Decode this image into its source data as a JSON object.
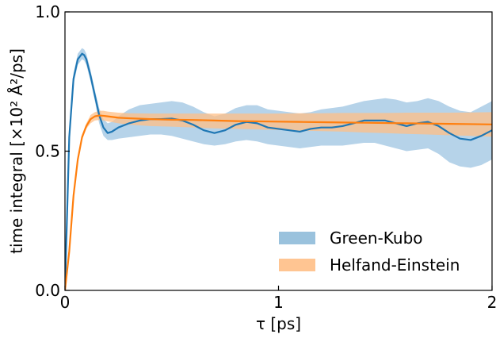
{
  "chart_data": {
    "type": "line",
    "xlabel": "τ [ps]",
    "ylabel": "time integral [×10² Å²/ps]",
    "xlim": [
      0,
      2
    ],
    "ylim": [
      0,
      1
    ],
    "x_ticks": [
      "0",
      "1",
      "2"
    ],
    "y_ticks": [
      "0.0",
      "0.5",
      "1.0"
    ],
    "legend_position": "lower-right",
    "grid": false,
    "series": [
      {
        "name": "Green-Kubo",
        "line_color": "#1f77b4",
        "band_color": "#9ec4e2",
        "x": [
          0.0,
          0.02,
          0.04,
          0.06,
          0.08,
          0.09,
          0.1,
          0.12,
          0.14,
          0.16,
          0.18,
          0.2,
          0.22,
          0.25,
          0.3,
          0.35,
          0.4,
          0.45,
          0.5,
          0.55,
          0.6,
          0.65,
          0.7,
          0.75,
          0.8,
          0.85,
          0.9,
          0.95,
          1.0,
          1.05,
          1.1,
          1.15,
          1.2,
          1.25,
          1.3,
          1.35,
          1.4,
          1.45,
          1.5,
          1.55,
          1.6,
          1.65,
          1.7,
          1.75,
          1.8,
          1.85,
          1.9,
          1.95,
          2.0
        ],
        "y": [
          0.0,
          0.55,
          0.76,
          0.83,
          0.85,
          0.845,
          0.83,
          0.77,
          0.7,
          0.63,
          0.585,
          0.565,
          0.57,
          0.585,
          0.6,
          0.61,
          0.615,
          0.615,
          0.617,
          0.61,
          0.595,
          0.575,
          0.565,
          0.575,
          0.595,
          0.605,
          0.6,
          0.585,
          0.58,
          0.575,
          0.57,
          0.58,
          0.585,
          0.585,
          0.59,
          0.6,
          0.61,
          0.61,
          0.61,
          0.6,
          0.59,
          0.6,
          0.605,
          0.59,
          0.565,
          0.545,
          0.54,
          0.555,
          0.575
        ],
        "lower": [
          0.0,
          0.53,
          0.74,
          0.81,
          0.83,
          0.825,
          0.81,
          0.75,
          0.68,
          0.6,
          0.555,
          0.54,
          0.54,
          0.545,
          0.55,
          0.555,
          0.56,
          0.56,
          0.555,
          0.545,
          0.535,
          0.525,
          0.52,
          0.525,
          0.535,
          0.54,
          0.535,
          0.525,
          0.52,
          0.515,
          0.51,
          0.515,
          0.52,
          0.52,
          0.52,
          0.525,
          0.53,
          0.53,
          0.52,
          0.51,
          0.5,
          0.505,
          0.51,
          0.49,
          0.46,
          0.445,
          0.44,
          0.45,
          0.47
        ],
        "upper": [
          0.0,
          0.57,
          0.78,
          0.85,
          0.87,
          0.865,
          0.85,
          0.79,
          0.72,
          0.655,
          0.615,
          0.6,
          0.605,
          0.625,
          0.65,
          0.665,
          0.67,
          0.675,
          0.68,
          0.675,
          0.66,
          0.64,
          0.625,
          0.635,
          0.655,
          0.665,
          0.665,
          0.65,
          0.645,
          0.64,
          0.635,
          0.64,
          0.65,
          0.655,
          0.66,
          0.67,
          0.68,
          0.685,
          0.69,
          0.685,
          0.675,
          0.68,
          0.69,
          0.68,
          0.66,
          0.645,
          0.64,
          0.66,
          0.68
        ]
      },
      {
        "name": "Helfand-Einstein",
        "line_color": "#ff7f0e",
        "band_color": "#ffbf86",
        "x": [
          0.0,
          0.02,
          0.04,
          0.06,
          0.08,
          0.1,
          0.12,
          0.14,
          0.16,
          0.18,
          0.2,
          0.25,
          0.3,
          0.4,
          0.5,
          0.6,
          0.7,
          0.8,
          0.9,
          1.0,
          1.1,
          1.2,
          1.3,
          1.4,
          1.5,
          1.6,
          1.7,
          1.8,
          1.9,
          2.0
        ],
        "y": [
          0.0,
          0.14,
          0.34,
          0.47,
          0.55,
          0.59,
          0.615,
          0.625,
          0.628,
          0.627,
          0.625,
          0.62,
          0.618,
          0.615,
          0.613,
          0.612,
          0.61,
          0.608,
          0.607,
          0.606,
          0.605,
          0.604,
          0.603,
          0.602,
          0.601,
          0.6,
          0.599,
          0.598,
          0.597,
          0.596
        ],
        "lower": [
          0.0,
          0.13,
          0.33,
          0.46,
          0.54,
          0.58,
          0.6,
          0.61,
          0.612,
          0.61,
          0.607,
          0.6,
          0.595,
          0.59,
          0.588,
          0.585,
          0.582,
          0.58,
          0.578,
          0.576,
          0.574,
          0.572,
          0.57,
          0.567,
          0.565,
          0.562,
          0.56,
          0.557,
          0.555,
          0.552
        ],
        "upper": [
          0.0,
          0.15,
          0.35,
          0.48,
          0.56,
          0.6,
          0.63,
          0.64,
          0.645,
          0.645,
          0.642,
          0.638,
          0.636,
          0.635,
          0.635,
          0.635,
          0.635,
          0.635,
          0.635,
          0.635,
          0.636,
          0.636,
          0.637,
          0.637,
          0.637,
          0.638,
          0.638,
          0.638,
          0.639,
          0.64
        ]
      }
    ]
  }
}
